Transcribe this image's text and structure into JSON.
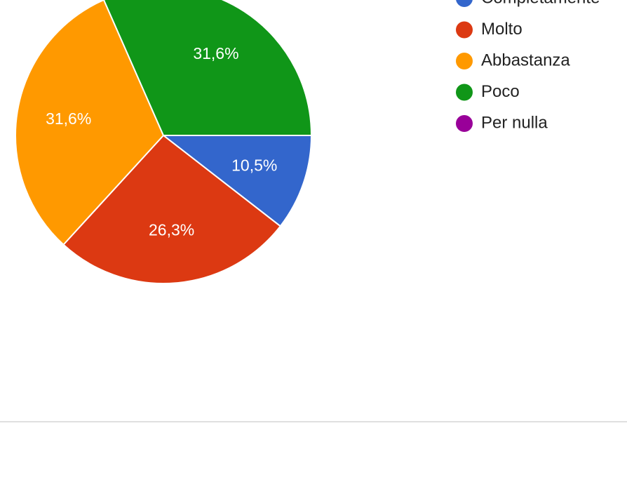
{
  "chart_data": {
    "type": "pie",
    "categories": [
      "Completamente",
      "Molto",
      "Abbastanza",
      "Poco",
      "Per nulla"
    ],
    "values": [
      10.5,
      26.3,
      31.6,
      31.6,
      0
    ],
    "value_labels": [
      "10,5%",
      "26,3%",
      "31,6%",
      "31,6%",
      null
    ],
    "colors": [
      "#3366cc",
      "#dc3912",
      "#ff9900",
      "#109618",
      "#990099"
    ],
    "legend": "right"
  }
}
